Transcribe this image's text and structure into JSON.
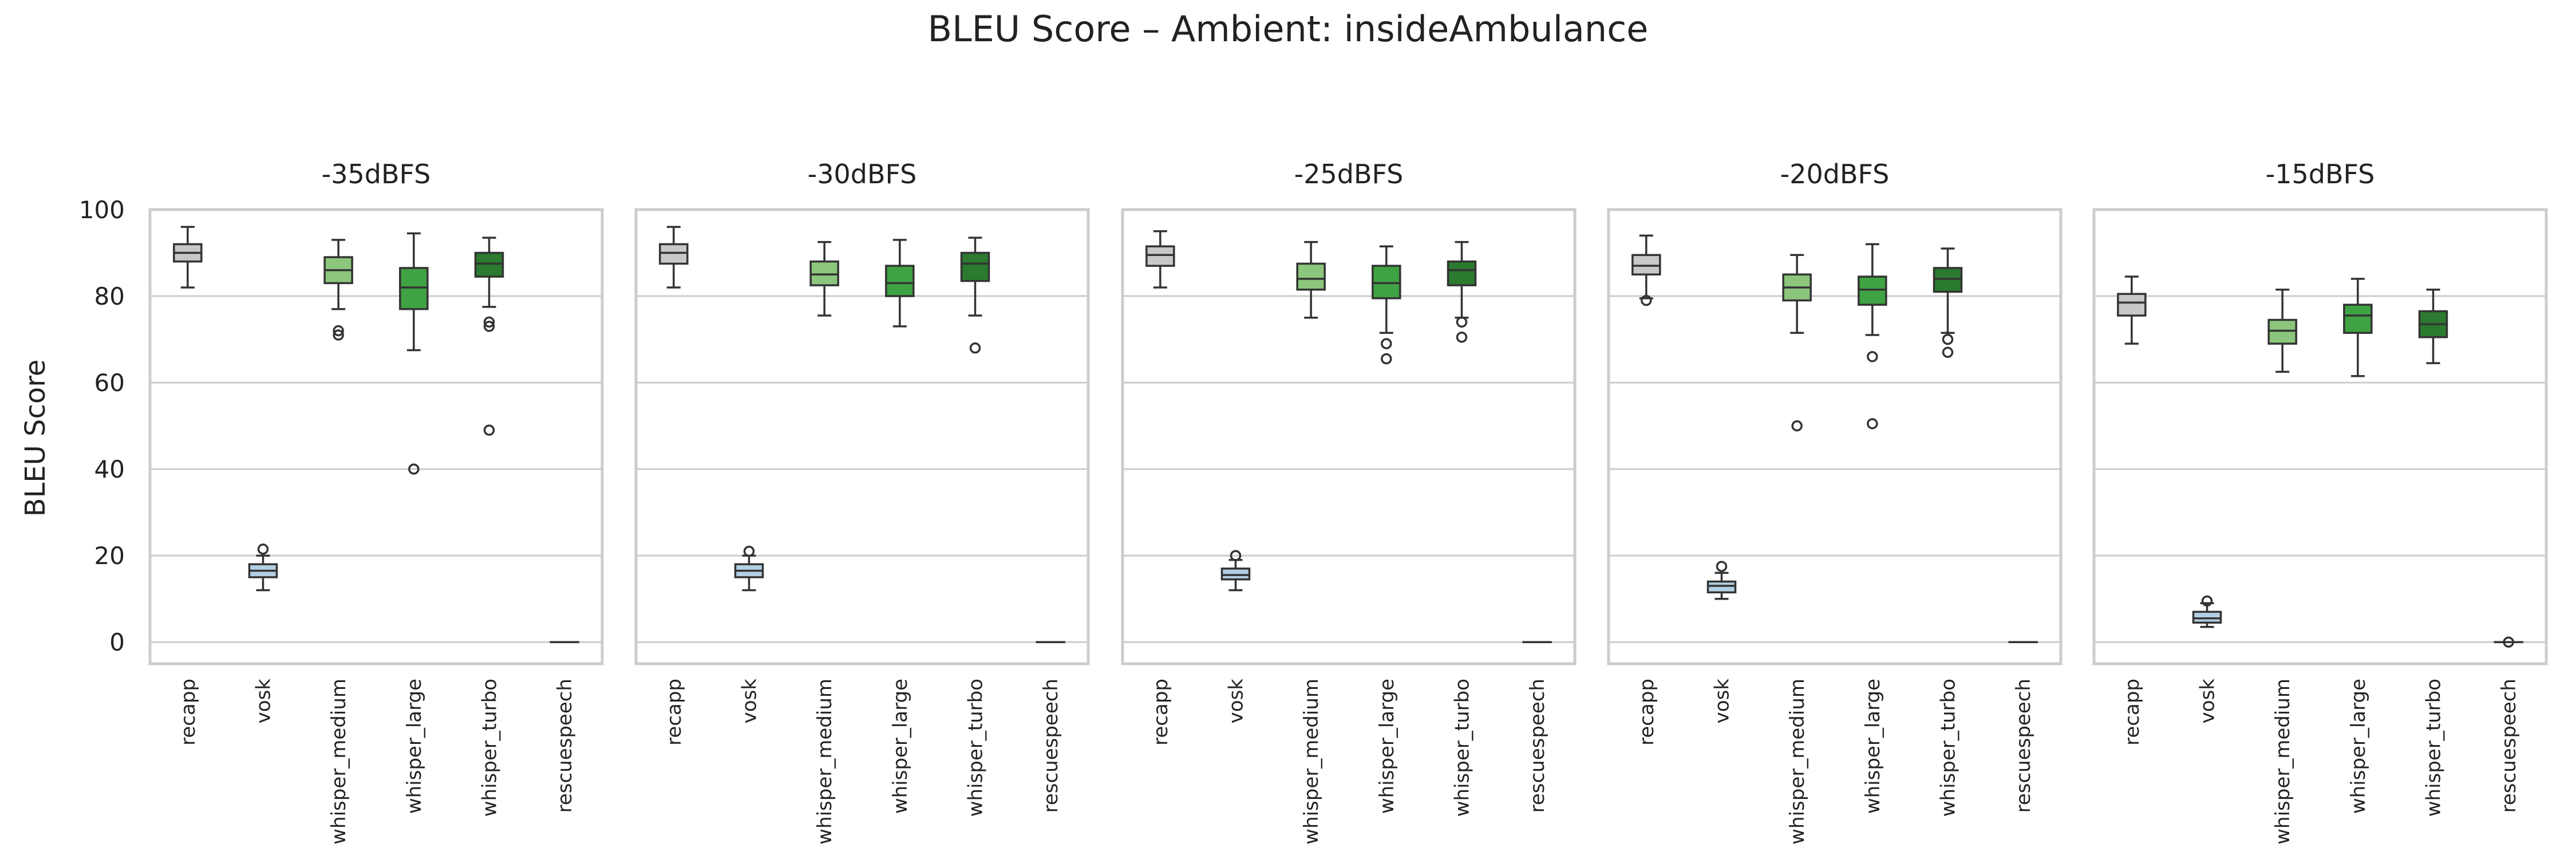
{
  "chart_data": {
    "type": "box",
    "title": "BLEU Score – Ambient: insideAmbulance",
    "ylabel": "BLEU Score",
    "ylim": [
      -5,
      100
    ],
    "yticks": [
      0,
      20,
      40,
      60,
      80,
      100
    ],
    "grid": true,
    "categories": [
      "recapp",
      "vosk",
      "whisper_medium",
      "whisper_large",
      "whisper_turbo",
      "rescuespeech"
    ],
    "colors": {
      "recapp": "#c8c8c8",
      "vosk": "#b3cfe3",
      "whisper_medium": "#8bc67c",
      "whisper_large": "#3fa243",
      "whisper_turbo": "#2b7a2f",
      "rescuespeech": "#888888"
    },
    "panels": [
      {
        "title": "-35dBFS",
        "boxes": [
          {
            "model": "recapp",
            "whislo": 82,
            "q1": 88,
            "med": 90,
            "q3": 92,
            "whishi": 96,
            "fliers": []
          },
          {
            "model": "vosk",
            "whislo": 12,
            "q1": 15,
            "med": 16.5,
            "q3": 18,
            "whishi": 20,
            "fliers": [
              21.5
            ]
          },
          {
            "model": "whisper_medium",
            "whislo": 77,
            "q1": 83,
            "med": 86,
            "q3": 89,
            "whishi": 93,
            "fliers": [
              72,
              71
            ]
          },
          {
            "model": "whisper_large",
            "whislo": 67.5,
            "q1": 77,
            "med": 82,
            "q3": 86.5,
            "whishi": 94.5,
            "fliers": [
              40
            ]
          },
          {
            "model": "whisper_turbo",
            "whislo": 77.5,
            "q1": 84.5,
            "med": 87.5,
            "q3": 90,
            "whishi": 93.5,
            "fliers": [
              74,
              73,
              49
            ]
          },
          {
            "model": "rescuespeech",
            "whislo": 0,
            "q1": 0,
            "med": 0,
            "q3": 0,
            "whishi": 0,
            "fliers": []
          }
        ]
      },
      {
        "title": "-30dBFS",
        "boxes": [
          {
            "model": "recapp",
            "whislo": 82,
            "q1": 87.5,
            "med": 90,
            "q3": 92,
            "whishi": 96,
            "fliers": []
          },
          {
            "model": "vosk",
            "whislo": 12,
            "q1": 15,
            "med": 16.5,
            "q3": 18,
            "whishi": 20,
            "fliers": [
              21
            ]
          },
          {
            "model": "whisper_medium",
            "whislo": 75.5,
            "q1": 82.5,
            "med": 85,
            "q3": 88,
            "whishi": 92.5,
            "fliers": []
          },
          {
            "model": "whisper_large",
            "whislo": 73,
            "q1": 80,
            "med": 83,
            "q3": 87,
            "whishi": 93,
            "fliers": []
          },
          {
            "model": "whisper_turbo",
            "whislo": 75.5,
            "q1": 83.5,
            "med": 87.5,
            "q3": 90,
            "whishi": 93.5,
            "fliers": [
              68
            ]
          },
          {
            "model": "rescuespeech",
            "whislo": 0,
            "q1": 0,
            "med": 0,
            "q3": 0,
            "whishi": 0,
            "fliers": []
          }
        ]
      },
      {
        "title": "-25dBFS",
        "boxes": [
          {
            "model": "recapp",
            "whislo": 82,
            "q1": 87,
            "med": 89.5,
            "q3": 91.5,
            "whishi": 95,
            "fliers": []
          },
          {
            "model": "vosk",
            "whislo": 12,
            "q1": 14.5,
            "med": 15.5,
            "q3": 17,
            "whishi": 19,
            "fliers": [
              20
            ]
          },
          {
            "model": "whisper_medium",
            "whislo": 75,
            "q1": 81.5,
            "med": 84,
            "q3": 87.5,
            "whishi": 92.5,
            "fliers": []
          },
          {
            "model": "whisper_large",
            "whislo": 71.5,
            "q1": 79.5,
            "med": 83,
            "q3": 87,
            "whishi": 91.5,
            "fliers": [
              69,
              65.5
            ]
          },
          {
            "model": "whisper_turbo",
            "whislo": 75,
            "q1": 82.5,
            "med": 86,
            "q3": 88,
            "whishi": 92.5,
            "fliers": [
              74,
              70.5
            ]
          },
          {
            "model": "rescuespeech",
            "whislo": 0,
            "q1": 0,
            "med": 0,
            "q3": 0,
            "whishi": 0,
            "fliers": []
          }
        ]
      },
      {
        "title": "-20dBFS",
        "boxes": [
          {
            "model": "recapp",
            "whislo": 79.5,
            "q1": 85,
            "med": 87,
            "q3": 89.5,
            "whishi": 94,
            "fliers": [
              79
            ]
          },
          {
            "model": "vosk",
            "whislo": 10,
            "q1": 11.5,
            "med": 13,
            "q3": 14,
            "whishi": 16,
            "fliers": [
              17.5
            ]
          },
          {
            "model": "whisper_medium",
            "whislo": 71.5,
            "q1": 79,
            "med": 82,
            "q3": 85,
            "whishi": 89.5,
            "fliers": [
              50
            ]
          },
          {
            "model": "whisper_large",
            "whislo": 71,
            "q1": 78,
            "med": 81.5,
            "q3": 84.5,
            "whishi": 92,
            "fliers": [
              66,
              50.5
            ]
          },
          {
            "model": "whisper_turbo",
            "whislo": 71.5,
            "q1": 81,
            "med": 84,
            "q3": 86.5,
            "whishi": 91,
            "fliers": [
              70,
              67
            ]
          },
          {
            "model": "rescuespeech",
            "whislo": 0,
            "q1": 0,
            "med": 0,
            "q3": 0,
            "whishi": 0,
            "fliers": []
          }
        ]
      },
      {
        "title": "-15dBFS",
        "boxes": [
          {
            "model": "recapp",
            "whislo": 69,
            "q1": 75.5,
            "med": 78.5,
            "q3": 80.5,
            "whishi": 84.5,
            "fliers": []
          },
          {
            "model": "vosk",
            "whislo": 3.5,
            "q1": 4.5,
            "med": 5.5,
            "q3": 7,
            "whishi": 9,
            "fliers": [
              9.5
            ]
          },
          {
            "model": "whisper_medium",
            "whislo": 62.5,
            "q1": 69,
            "med": 72,
            "q3": 74.5,
            "whishi": 81.5,
            "fliers": []
          },
          {
            "model": "whisper_large",
            "whislo": 61.5,
            "q1": 71.5,
            "med": 75.5,
            "q3": 78,
            "whishi": 84,
            "fliers": []
          },
          {
            "model": "whisper_turbo",
            "whislo": 64.5,
            "q1": 70.5,
            "med": 73.5,
            "q3": 76.5,
            "whishi": 81.5,
            "fliers": []
          },
          {
            "model": "rescuespeech",
            "whislo": 0,
            "q1": 0,
            "med": 0,
            "q3": 0,
            "whishi": 0,
            "fliers": [
              0
            ]
          }
        ]
      }
    ]
  }
}
